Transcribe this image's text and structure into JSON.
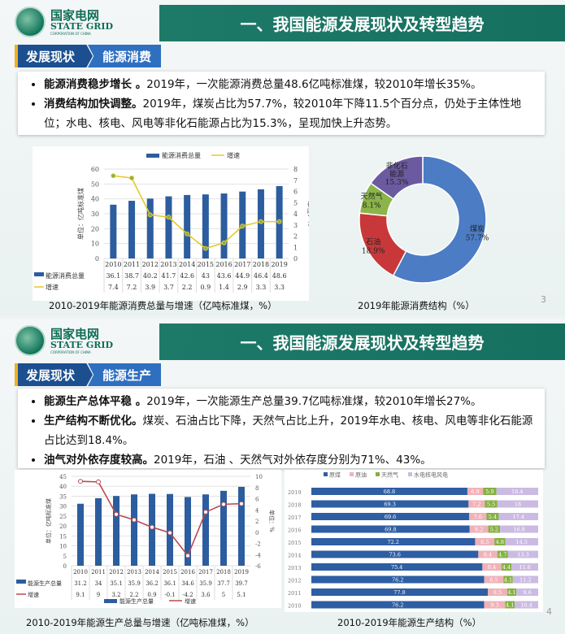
{
  "slides": [
    {
      "logo": {
        "cn": "国家电网",
        "en": "STATE GRID",
        "sub": "CORPORATION OF CHINA"
      },
      "title": "一、我国能源发展现状及转型趋势",
      "tag": {
        "section": "发展现状",
        "topic": "能源消费"
      },
      "bullets": [
        {
          "bold": "能源消费稳步增长 。",
          "text": "2019年，一次能源消费总量48.6亿吨标准煤，较2010年增长35%。"
        },
        {
          "bold": "消费结构加快调整。",
          "text": "2019年，煤炭占比为57.7%，较2010年下降11.5个百分点，仍处于主体性地位；水电、核电、风电等非化石能源占比为15.3%，呈现加快上升态势。"
        }
      ],
      "page": "3"
    },
    {
      "logo": {
        "cn": "国家电网",
        "en": "STATE GRID",
        "sub": "CORPORATION OF CHINA"
      },
      "title": "一、我国能源发展现状及转型趋势",
      "tag": {
        "section": "发展现状",
        "topic": "能源生产"
      },
      "bullets": [
        {
          "bold": "能源生产总体平稳 。",
          "text": "2019年，一次能源生产总量39.7亿吨标准煤，较2010年增长27%。"
        },
        {
          "bold": "生产结构不断优化。",
          "text": "煤炭、石油占比下降，天然气占比上升，2019年水电、核电、风电等非化石能源占比达到18.4%。"
        },
        {
          "bold": "油气对外依存度较高。",
          "text": "2019年，石油 、天然气对外依存度分别为71%、43%。"
        }
      ],
      "page": "4"
    }
  ],
  "chart_data": [
    {
      "type": "bar+line",
      "title": "2010-2019年能源消费总量与增速（亿吨标准煤，%）",
      "categories": [
        "2010",
        "2011",
        "2012",
        "2013",
        "2014",
        "2015",
        "2016",
        "2017",
        "2018",
        "2019"
      ],
      "series": [
        {
          "name": "能源消费总量",
          "values": [
            36.1,
            38.7,
            40.2,
            41.7,
            42.6,
            43,
            43.6,
            44.9,
            46.4,
            48.6
          ]
        },
        {
          "name": "增速",
          "values": [
            7.4,
            7.2,
            3.9,
            3.7,
            2.2,
            0.9,
            1.4,
            2.9,
            3.3,
            3.3
          ]
        }
      ],
      "ylabel": "单位：亿吨标准煤",
      "y2label": "单位：%",
      "ylim": [
        0,
        60
      ],
      "y2lim": [
        0,
        8
      ],
      "yticks": [
        "0",
        "10",
        "20",
        "30",
        "40",
        "50",
        "60"
      ],
      "y2ticks": [
        "0",
        "1",
        "2",
        "3",
        "4",
        "5",
        "6",
        "7",
        "8"
      ],
      "legend": "top",
      "colors": [
        "#2c5d9e",
        "#e8c82a"
      ]
    },
    {
      "type": "pie",
      "title": "2019年能源消费结构（%）",
      "slices": [
        {
          "label": "煤炭",
          "value": 57.7,
          "text": "57.7%",
          "color": "#4b7cc4"
        },
        {
          "label": "石油",
          "value": 18.9,
          "text": "18.9%",
          "color": "#c8383a"
        },
        {
          "label": "天然气",
          "value": 8.1,
          "text": "8.1%",
          "color": "#8cb44a"
        },
        {
          "label": "非化石能源",
          "value": 15.3,
          "text": "15.3%",
          "color": "#6b5aa0"
        }
      ]
    },
    {
      "type": "bar+line",
      "title": "2010-2019年能源生产总量与增速（亿吨标准煤，%）",
      "categories": [
        "2010",
        "2011",
        "2012",
        "2013",
        "2014",
        "2015",
        "2016",
        "2017",
        "2018",
        "2019"
      ],
      "series": [
        {
          "name": "能源生产总量",
          "values": [
            31.2,
            34,
            35.1,
            35.9,
            36.2,
            36.1,
            34.6,
            35.9,
            37.7,
            39.7
          ]
        },
        {
          "name": "增速",
          "values": [
            9.1,
            9,
            3.2,
            2.2,
            0.9,
            -0.1,
            -4.2,
            3.6,
            5,
            5.1
          ]
        }
      ],
      "ylabel": "单位：亿吨标准煤",
      "y2label": "单位：%",
      "ylim": [
        0,
        45
      ],
      "y2lim": [
        -6,
        10
      ],
      "yticks": [
        "0",
        "5",
        "10",
        "15",
        "20",
        "25",
        "30",
        "35",
        "40",
        "45"
      ],
      "y2ticks": [
        "-6",
        "-4",
        "-2",
        "0",
        "2",
        "4",
        "6",
        "8",
        "10"
      ],
      "legend": "bottom",
      "colors": [
        "#2c5d9e",
        "#b84a50"
      ]
    },
    {
      "type": "bar",
      "stacked": true,
      "orientation": "horizontal",
      "title": "2010-2019年能源生产结构（%）",
      "categories": [
        "2019",
        "2018",
        "2017",
        "2016",
        "2015",
        "2014",
        "2013",
        "2012",
        "2011",
        "2010"
      ],
      "series": [
        {
          "name": "原煤",
          "color": "#2e5ea3",
          "values": [
            68.8,
            69.3,
            69.6,
            69.8,
            72.2,
            73.6,
            75.4,
            76.2,
            77.8,
            76.2
          ]
        },
        {
          "name": "原油",
          "color": "#f0b2b8",
          "values": [
            6.9,
            7.2,
            7.6,
            8.2,
            8.5,
            8.4,
            8.4,
            8.5,
            8.5,
            9.3
          ]
        },
        {
          "name": "天然气",
          "color": "#84b042",
          "values": [
            5.9,
            5.5,
            5.4,
            5.2,
            4.8,
            4.7,
            4.4,
            4.1,
            4.1,
            4.1
          ]
        },
        {
          "name": "水电核电风电",
          "color": "#cbbbe2",
          "values": [
            18.4,
            18.0,
            17.4,
            16.8,
            14.5,
            13.3,
            11.8,
            11.2,
            9.6,
            10.4
          ]
        }
      ],
      "legend": "top"
    }
  ]
}
